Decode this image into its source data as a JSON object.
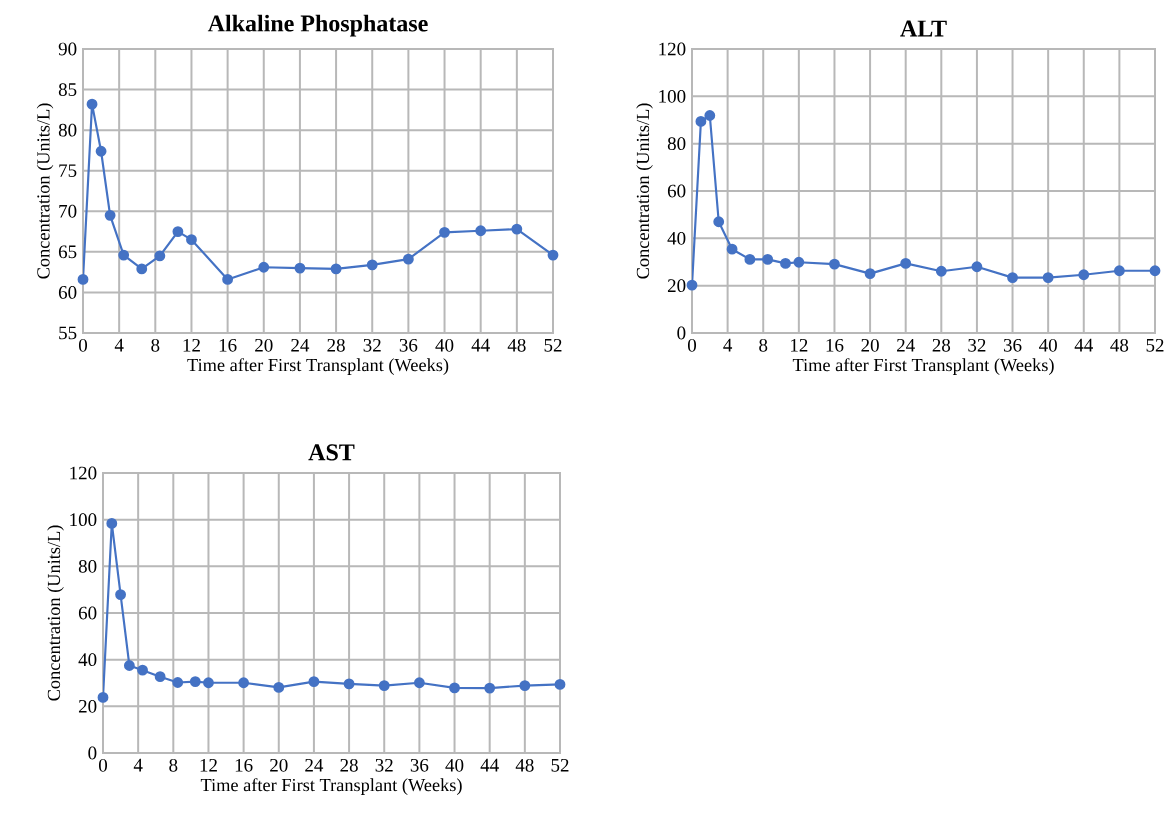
{
  "chart_data": [
    {
      "type": "line",
      "title": "Alkaline Phosphatase",
      "xlabel": "Time after First Transplant (Weeks)",
      "ylabel": "Concentration (Units/L)",
      "x": [
        0,
        1,
        2,
        3,
        4.5,
        6.5,
        8.5,
        10.5,
        12,
        16,
        20,
        24,
        28,
        32,
        36,
        40,
        44,
        48,
        52
      ],
      "series": [
        {
          "color": "#4472c4",
          "values": [
            61.6,
            83.2,
            77.4,
            69.5,
            64.6,
            62.9,
            64.5,
            67.5,
            66.5,
            61.6,
            63.1,
            63.0,
            62.9,
            63.4,
            64.1,
            67.4,
            67.6,
            67.8,
            64.6
          ]
        }
      ],
      "xlim": [
        0,
        52
      ],
      "ylim": [
        55,
        90
      ],
      "xticks": [
        0,
        4,
        8,
        12,
        16,
        20,
        24,
        28,
        32,
        36,
        40,
        44,
        48,
        52
      ],
      "yticks": [
        55,
        60,
        65,
        70,
        75,
        80,
        85,
        90
      ],
      "grid": true,
      "marker": "circle"
    },
    {
      "type": "line",
      "title": "ALT",
      "xlabel": "Time after First Transplant (Weeks)",
      "ylabel": "Concentration (Units/L)",
      "x": [
        0,
        1,
        2,
        3,
        4.5,
        6.5,
        8.5,
        10.5,
        12,
        16,
        20,
        24,
        28,
        32,
        36,
        40,
        44,
        48,
        52
      ],
      "series": [
        {
          "color": "#4472c4",
          "values": [
            20.2,
            89.4,
            91.9,
            47.0,
            35.4,
            31.1,
            31.1,
            29.4,
            29.9,
            29.1,
            25.1,
            29.4,
            26.1,
            28.0,
            23.4,
            23.4,
            24.6,
            26.3,
            26.3
          ]
        }
      ],
      "xlim": [
        0,
        52
      ],
      "ylim": [
        0,
        120
      ],
      "xticks": [
        0,
        4,
        8,
        12,
        16,
        20,
        24,
        28,
        32,
        36,
        40,
        44,
        48,
        52
      ],
      "yticks": [
        0,
        20,
        40,
        60,
        80,
        100,
        120
      ],
      "grid": true,
      "marker": "circle"
    },
    {
      "type": "line",
      "title": "AST",
      "xlabel": "Time after First Transplant (Weeks)",
      "ylabel": "Concentration (Units/L)",
      "x": [
        0,
        1,
        2,
        3,
        4.5,
        6.5,
        8.5,
        10.5,
        12,
        16,
        20,
        24,
        28,
        32,
        36,
        40,
        44,
        48,
        52
      ],
      "series": [
        {
          "color": "#4472c4",
          "values": [
            23.8,
            98.4,
            67.9,
            37.5,
            35.5,
            32.7,
            30.2,
            30.6,
            30.1,
            30.1,
            28.1,
            30.6,
            29.6,
            28.9,
            30.1,
            27.9,
            27.8,
            28.9,
            29.4
          ]
        }
      ],
      "xlim": [
        0,
        52
      ],
      "ylim": [
        0,
        120
      ],
      "xticks": [
        0,
        4,
        8,
        12,
        16,
        20,
        24,
        28,
        32,
        36,
        40,
        44,
        48,
        52
      ],
      "yticks": [
        0,
        20,
        40,
        60,
        80,
        100,
        120
      ],
      "grid": true,
      "marker": "circle"
    }
  ]
}
